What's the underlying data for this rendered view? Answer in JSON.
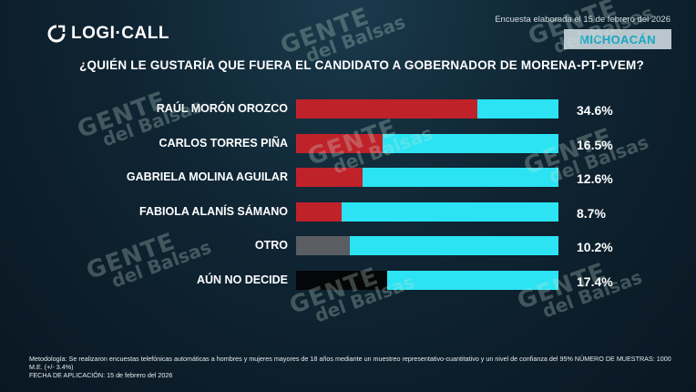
{
  "header": {
    "brand": "LOGI·CALL",
    "survey_note": "Encuesta elaborada el 15 de febrero del 2026",
    "region": "MICHOACÁN"
  },
  "question": "¿QUIÉN LE GUSTARÍA QUE FUERA EL CANDIDATO A GOBERNADOR DE MORENA-PT-PVEM?",
  "watermark": {
    "line1": "GENTE",
    "line2": "del Balsas"
  },
  "footer": {
    "methodology": "Metodología: Se realizaron encuestas telefónicas automáticas a hombres y mujeres mayores de 18 años mediante un muestreo representativo-cuantitativo y un nivel de confianza del 95% NÚMERO DE MUESTRAS: 1000 M.E. (+/- 3.4%)",
    "date": "FECHA DE APLICACIÓN: 15 de febrero del 2026"
  },
  "chart_data": {
    "type": "bar",
    "orientation": "horizontal",
    "title": "¿QUIÉN LE GUSTARÍA QUE FUERA EL CANDIDATO A GOBERNADOR DE MORENA-PT-PVEM?",
    "categories": [
      "RAÚL MORÓN OROZCO",
      "CARLOS TORRES PIÑA",
      "GABRIELA MOLINA AGUILAR",
      "FABIOLA ALANÍS SÁMANO",
      "OTRO",
      "AÚN NO DECIDE"
    ],
    "values": [
      34.6,
      16.5,
      12.6,
      8.7,
      10.2,
      17.4
    ],
    "labels": [
      "34.6%",
      "16.5%",
      "12.6%",
      "8.7%",
      "10.2%",
      "17.4%"
    ],
    "xlim": [
      0,
      50
    ],
    "colors": {
      "bars": [
        "#c0222a",
        "#c0222a",
        "#c0222a",
        "#c0222a",
        "#5a5e63",
        "#050607"
      ],
      "track": "#2be3f3"
    },
    "grid": false,
    "legend": "none"
  }
}
